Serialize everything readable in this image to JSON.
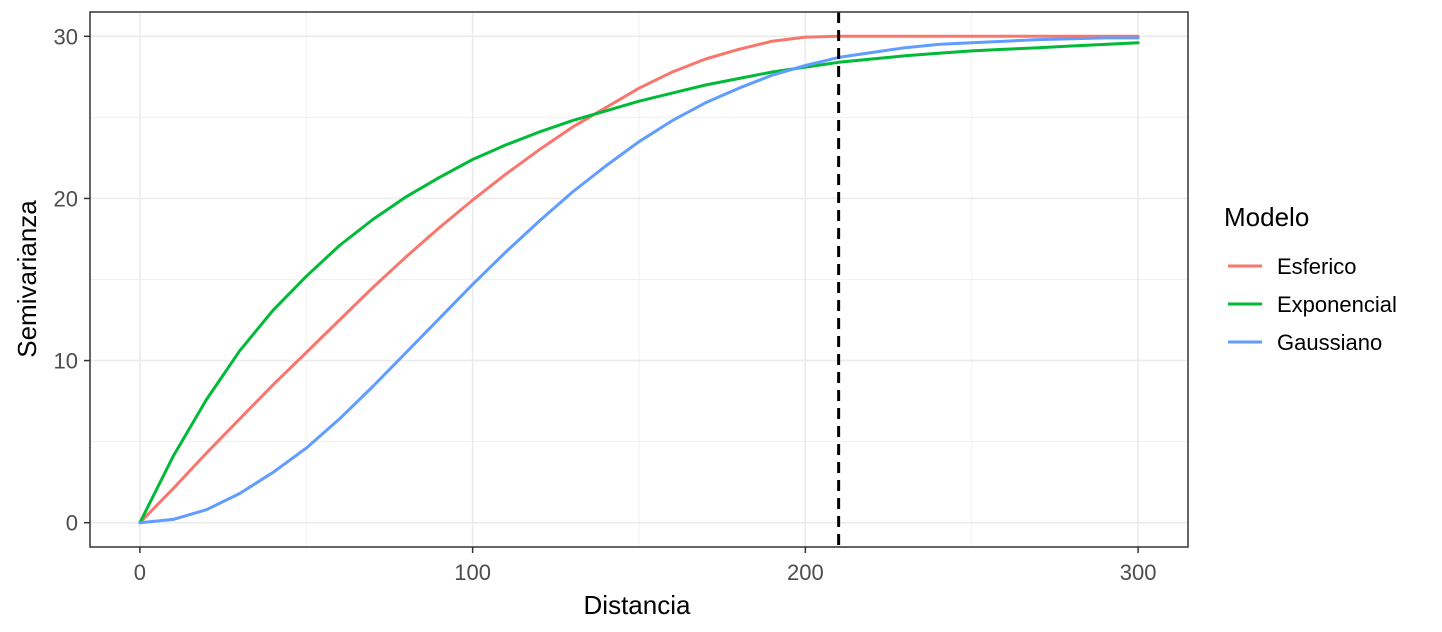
{
  "chart_data": {
    "type": "line",
    "xlabel": "Distancia",
    "ylabel": "Semivarianza",
    "xlim": [
      -15,
      315
    ],
    "ylim": [
      -1.5,
      31.5
    ],
    "xticks": [
      0,
      100,
      200,
      300
    ],
    "xtick_labels": [
      "0",
      "100",
      "200",
      "300"
    ],
    "yticks": [
      0,
      10,
      20,
      30
    ],
    "ytick_labels": [
      "0",
      "10",
      "20",
      "30"
    ],
    "grid": true,
    "legend": {
      "title": "Modelo",
      "position": "right"
    },
    "vline": {
      "x": 210,
      "style": "dashed",
      "color": "#000000"
    },
    "x": [
      0,
      10,
      20,
      30,
      40,
      50,
      60,
      70,
      80,
      90,
      100,
      110,
      120,
      130,
      140,
      150,
      160,
      170,
      180,
      190,
      200,
      210,
      220,
      230,
      240,
      250,
      260,
      270,
      280,
      290,
      300
    ],
    "series": [
      {
        "name": "Esferico",
        "color": "#F8766D",
        "values": [
          0,
          2.1,
          4.3,
          6.4,
          8.5,
          10.5,
          12.5,
          14.5,
          16.4,
          18.2,
          19.9,
          21.5,
          23.0,
          24.4,
          25.6,
          26.8,
          27.8,
          28.6,
          29.2,
          29.7,
          29.95,
          30.0,
          30.0,
          30.0,
          30.0,
          30.0,
          30.0,
          30.0,
          30.0,
          30.0,
          30.0
        ]
      },
      {
        "name": "Exponencial",
        "color": "#00BA38",
        "values": [
          0,
          4.1,
          7.6,
          10.6,
          13.1,
          15.2,
          17.1,
          18.7,
          20.1,
          21.3,
          22.4,
          23.3,
          24.1,
          24.8,
          25.4,
          26.0,
          26.5,
          27.0,
          27.4,
          27.8,
          28.1,
          28.4,
          28.6,
          28.8,
          28.95,
          29.1,
          29.2,
          29.3,
          29.4,
          29.5,
          29.6
        ]
      },
      {
        "name": "Gaussiano",
        "color": "#619CFF",
        "values": [
          0,
          0.2,
          0.8,
          1.8,
          3.1,
          4.6,
          6.4,
          8.4,
          10.5,
          12.6,
          14.7,
          16.7,
          18.6,
          20.4,
          22.0,
          23.5,
          24.8,
          25.9,
          26.8,
          27.6,
          28.2,
          28.7,
          29.0,
          29.3,
          29.5,
          29.6,
          29.7,
          29.8,
          29.85,
          29.9,
          29.9
        ]
      }
    ]
  }
}
